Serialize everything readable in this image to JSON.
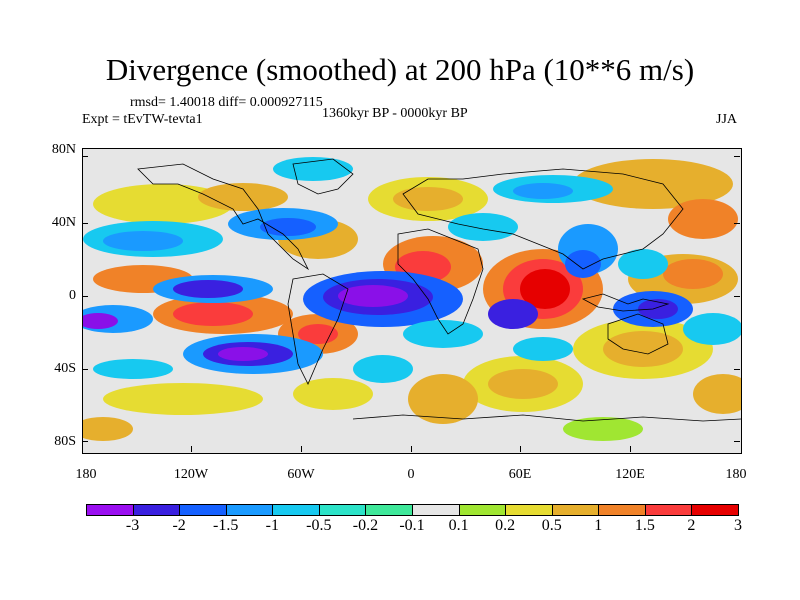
{
  "title": "Divergence (smoothed) at 200 hPa (10**6 m/s)",
  "stats": "rmsd= 1.40018 diff= 0.000927115",
  "experiment": "Expt = tEvTW-tevta1",
  "period": "1360kyr BP - 0000kyr BP",
  "season": "JJA",
  "axes": {
    "y_ticks": [
      "80N",
      "40N",
      "0",
      "40S",
      "80S"
    ],
    "x_ticks": [
      "180",
      "120W",
      "60W",
      "0",
      "60E",
      "120E",
      "180"
    ]
  },
  "colorbar": {
    "labels": [
      "-3",
      "-2",
      "-1.5",
      "-1",
      "-0.5",
      "-0.2",
      "-0.1",
      "0.1",
      "0.2",
      "0.5",
      "1",
      "1.5",
      "2",
      "3"
    ],
    "colors": [
      "#9a0ff0",
      "#3a20e0",
      "#1560ff",
      "#1a9aff",
      "#17c9f0",
      "#2ce3c8",
      "#3fe89a",
      "#e6e6e6",
      "#a0e632",
      "#e6dc32",
      "#e6af2d",
      "#f08228",
      "#fa3c3c",
      "#e60000"
    ]
  },
  "colors": {
    "strong_neg": "#8a10e8",
    "neg2": "#3a20e0",
    "neg15": "#1560ff",
    "neg1": "#1a9aff",
    "neg05": "#17c9f0",
    "neg02": "#2ce3c8",
    "neg01": "#3fe89a",
    "zero": "#e6e6e6",
    "pos01": "#a0e632",
    "pos02": "#e6dc32",
    "pos05": "#e6af2d",
    "pos1": "#f08228",
    "pos15": "#fa3c3c",
    "strong_pos": "#e60000"
  }
}
